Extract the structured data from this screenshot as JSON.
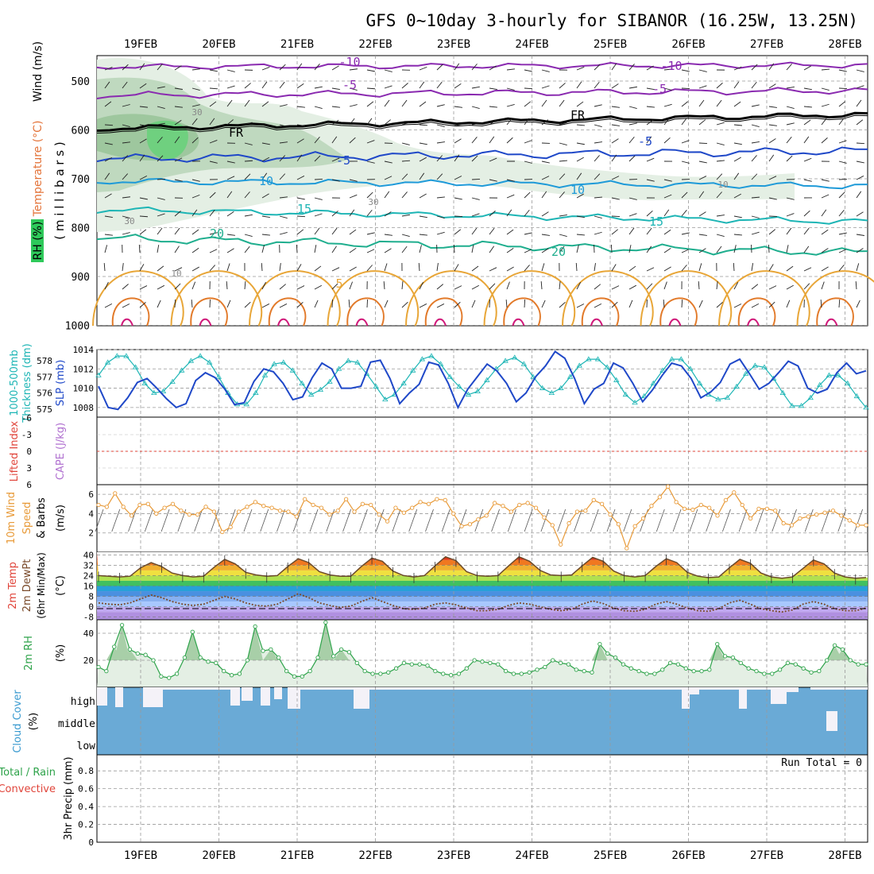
{
  "title": "GFS 0~10day 3-hourly for SIBANOR (16.25W, 13.25N)",
  "days": [
    "19FEB",
    "20FEB",
    "21FEB",
    "22FEB",
    "23FEB",
    "24FEB",
    "25FEB",
    "26FEB",
    "27FEB",
    "28FEB"
  ],
  "colors": {
    "wind_fill": "#2ec95a",
    "temp_lbl": "#e4743a",
    "thick": "#1db5b5",
    "slp": "#1f48c8",
    "lifted": "#e0443a",
    "cape": "#b070d0",
    "wind10": "#e89a38",
    "rh": "#2ea34a",
    "cloud": "#6aaad6",
    "cloud_lbl": "#3b9bd0",
    "precip_total": "#2ea34a",
    "precip_conv": "#e0443a"
  },
  "panels": {
    "upper": {
      "ylabel_parts": [
        "RH (%)",
        "Temperature (°C)",
        "Wind (m/s)"
      ],
      "ylabel_units": "( m i l l i b a r s )",
      "y_ticks": [
        "500",
        "600",
        "700",
        "800",
        "900",
        "1000"
      ],
      "contour_labels": [
        "-10",
        "-10",
        "-5",
        "-5",
        "FR",
        "FR",
        "-5",
        "-5",
        "10",
        "10",
        "15",
        "15",
        "20",
        "20",
        "5",
        "30",
        "30",
        "30",
        "10",
        "10"
      ]
    },
    "slp": {
      "ylabel_left": [
        "1000-500mb",
        "Thickness (dm)"
      ],
      "ylabel_right": "SLP (mb)",
      "thick_ticks": [
        "578",
        "577",
        "576",
        "575"
      ],
      "slp_ticks": [
        "1014",
        "1012",
        "1010",
        "1008"
      ]
    },
    "cape": {
      "ylabel_left": "Lifted Index",
      "ylabel_right": "CAPE (J/kg)",
      "ticks": [
        "-6",
        "-3",
        "0",
        "3",
        "6"
      ]
    },
    "wind10": {
      "ylabel": [
        "10m Wind",
        "Speed",
        "& Barbs"
      ],
      "units": "(m/s)",
      "ticks": [
        "6",
        "4",
        "2"
      ]
    },
    "temp": {
      "ylabel": [
        "2m Temp",
        "2m DewPt",
        "(6hr Min/Max)"
      ],
      "units": "(°C)",
      "ticks": [
        "40",
        "32",
        "24",
        "16",
        "8",
        "0",
        "-8"
      ]
    },
    "rh": {
      "ylabel": "2m RH",
      "units": "(%)",
      "ticks": [
        "40",
        "20"
      ]
    },
    "cloud": {
      "ylabel": "Cloud Cover",
      "units": "(%)",
      "levels": [
        "high",
        "middle",
        "low"
      ]
    },
    "precip": {
      "ylabel_left": [
        "Total / Rain",
        "Convective"
      ],
      "ylabel_right": "3hr Precip (mm)",
      "ticks": [
        "0.8",
        "0.6",
        "0.4",
        "0.2",
        "0"
      ],
      "run_total": "Run Total = 0"
    }
  },
  "chart_data": {
    "type": "line",
    "x_start": "2021-02-18T15:00Z",
    "x_step_hours": 3,
    "series": [
      {
        "name": "SLP (mb)",
        "values": [
          1010.2,
          1008.0,
          1007.8,
          1009.0,
          1010.6,
          1011.0,
          1010.0,
          1008.9,
          1008.0,
          1008.4,
          1010.8,
          1011.6,
          1011.1,
          1009.9,
          1008.3,
          1008.5,
          1010.7,
          1012.0,
          1011.7,
          1010.5,
          1008.8,
          1009.1,
          1011.1,
          1012.6,
          1012.0,
          1010.0,
          1010.0,
          1010.2,
          1012.7,
          1012.9,
          1011.0,
          1008.4,
          1009.5,
          1010.4,
          1012.7,
          1012.4,
          1010.5,
          1008.0,
          1009.9,
          1011.2,
          1012.5,
          1011.8,
          1010.5,
          1008.6,
          1009.5,
          1011.2,
          1012.3,
          1013.8,
          1013.1,
          1011.0,
          1008.4,
          1009.9,
          1010.5,
          1012.6,
          1012.1,
          1010.5,
          1008.6,
          1009.8,
          1011.3,
          1012.6,
          1012.3,
          1011.0,
          1009.0,
          1009.6,
          1010.6,
          1012.5,
          1013.0,
          1011.5,
          1009.9,
          1010.5,
          1011.6,
          1012.8,
          1012.3,
          1010.0,
          1009.5,
          1009.9,
          1011.6,
          1012.6,
          1011.5,
          1011.8
        ]
      },
      {
        "name": "1000-500mb Thickness (dm)",
        "values": [
          577.1,
          577.9,
          578.3,
          578.3,
          577.6,
          576.6,
          576.0,
          576.1,
          576.7,
          577.4,
          578.0,
          578.3,
          577.9,
          577.0,
          576.0,
          575.3,
          575.3,
          576.0,
          577.1,
          577.8,
          577.9,
          577.4,
          576.6,
          575.9,
          576.2,
          576.7,
          577.5,
          578.0,
          577.9,
          577.2,
          576.4,
          575.6,
          575.9,
          576.6,
          577.4,
          578.1,
          578.3,
          577.8,
          577.0,
          576.4,
          575.9,
          576.1,
          576.8,
          577.5,
          578.0,
          578.2,
          577.8,
          577.0,
          576.3,
          576.0,
          576.3,
          577.0,
          577.7,
          578.1,
          578.1,
          577.6,
          576.8,
          575.9,
          575.4,
          575.8,
          576.6,
          577.4,
          578.1,
          578.1,
          577.5,
          576.6,
          575.9,
          575.6,
          575.7,
          576.4,
          577.2,
          577.7,
          577.6,
          576.9,
          576.0,
          575.2,
          575.2,
          575.7,
          576.5,
          577.1,
          577.1,
          576.6,
          575.8,
          575.1
        ]
      },
      {
        "name": "10m Wind Speed (m/s)",
        "values": [
          4.9,
          4.7,
          6.1,
          4.7,
          3.8,
          4.9,
          5.0,
          4.0,
          4.6,
          5.0,
          4.3,
          3.9,
          3.9,
          4.7,
          4.2,
          2.1,
          2.6,
          4.2,
          4.7,
          5.2,
          4.8,
          4.6,
          4.3,
          4.2,
          3.7,
          5.5,
          4.9,
          4.6,
          3.9,
          4.3,
          5.5,
          4.2,
          5.0,
          4.9,
          3.9,
          3.2,
          4.6,
          4.1,
          4.6,
          5.2,
          5.0,
          5.5,
          5.4,
          4.0,
          2.7,
          2.9,
          3.4,
          3.8,
          5.1,
          4.8,
          4.2,
          4.9,
          5.1,
          4.6,
          3.6,
          2.8,
          0.8,
          3.0,
          4.2,
          4.3,
          5.4,
          5.0,
          3.9,
          2.9,
          0.4,
          2.7,
          3.5,
          4.8,
          5.7,
          6.8,
          5.2,
          4.5,
          4.4,
          4.9,
          4.6,
          3.8,
          5.4,
          6.2,
          4.9,
          3.5,
          4.5,
          4.5,
          4.3,
          3.0,
          2.8,
          3.5,
          3.7,
          3.9,
          4.1,
          4.3,
          3.8,
          3.3,
          2.8,
          2.8
        ]
      },
      {
        "name": "2m Temp (°C)",
        "values": [
          24.0,
          23.5,
          23.0,
          23.5,
          30.0,
          34.0,
          31.0,
          26.0,
          24.0,
          23.0,
          23.5,
          30.5,
          36.5,
          33.0,
          26.5,
          24.5,
          23.5,
          24.0,
          31.0,
          37.0,
          34.0,
          27.0,
          24.5,
          23.5,
          23.5,
          31.0,
          37.5,
          35.0,
          27.5,
          24.0,
          23.0,
          24.0,
          31.5,
          38.5,
          35.5,
          27.0,
          24.0,
          23.5,
          24.0,
          31.5,
          38.5,
          35.0,
          28.0,
          24.5,
          24.0,
          24.5,
          31.5,
          38.0,
          35.0,
          27.5,
          24.0,
          23.0,
          24.0,
          31.0,
          37.0,
          34.0,
          26.5,
          23.5,
          22.5,
          23.0,
          30.0,
          36.5,
          33.5,
          26.0,
          23.0,
          22.0,
          23.0,
          29.5,
          36.0,
          33.0,
          26.0,
          23.0,
          22.0,
          22.5
        ]
      },
      {
        "name": "2m DewPt (°C)",
        "values": [
          3.0,
          2.0,
          1.5,
          3.0,
          6.0,
          9.0,
          7.0,
          4.0,
          2.0,
          1.0,
          2.0,
          5.0,
          8.0,
          6.0,
          3.0,
          1.0,
          0.5,
          2.0,
          6.0,
          10.0,
          7.0,
          3.0,
          1.0,
          -0.5,
          0.5,
          4.0,
          7.0,
          4.0,
          1.0,
          -1.5,
          -2.0,
          -1.0,
          2.0,
          3.0,
          1.5,
          -1.0,
          -3.0,
          -3.0,
          -2.0,
          1.0,
          3.0,
          2.0,
          0.0,
          -2.0,
          -3.0,
          -2.0,
          2.0,
          4.5,
          2.5,
          -1.0,
          -3.0,
          -3.5,
          -2.0,
          2.0,
          4.0,
          2.0,
          -1.0,
          -3.0,
          -3.5,
          -1.5,
          3.0,
          5.0,
          2.0,
          -1.5,
          -3.0,
          -4.0,
          -2.5,
          2.0,
          4.0,
          2.0,
          -1.5,
          -3.0,
          -3.0,
          -1.0
        ]
      },
      {
        "name": "2m RH (%)",
        "values": [
          15,
          12,
          30,
          46,
          28,
          25,
          24,
          20,
          8,
          7,
          10,
          22,
          41,
          22,
          19,
          18,
          12,
          9,
          10,
          20,
          45,
          27,
          28,
          22,
          12,
          8,
          8,
          12,
          22,
          48,
          23,
          28,
          26,
          18,
          12,
          10,
          10,
          11,
          14,
          18,
          17,
          17,
          16,
          12,
          10,
          9,
          10,
          14,
          20,
          19,
          18,
          17,
          12,
          10,
          10,
          11,
          13,
          15,
          20,
          18,
          17,
          13,
          12,
          11,
          32,
          25,
          22,
          17,
          14,
          12,
          10,
          10,
          13,
          18,
          17,
          14,
          12,
          12,
          13,
          32,
          23,
          22,
          18,
          14,
          12,
          10,
          10,
          13,
          18,
          17,
          14,
          11,
          12,
          20,
          31,
          28,
          20,
          17,
          17
        ]
      },
      {
        "name": "3hr Precip (mm)",
        "values": [
          0,
          0,
          0,
          0,
          0,
          0,
          0,
          0,
          0,
          0,
          0,
          0,
          0,
          0,
          0,
          0,
          0,
          0,
          0,
          0,
          0,
          0,
          0,
          0,
          0,
          0,
          0,
          0,
          0,
          0
        ]
      }
    ],
    "ylim_slp": [
      1007,
      1014
    ],
    "ylim_thick": [
      574.5,
      578.7
    ],
    "ylim_wind10": [
      0,
      7
    ],
    "ylim_temp": [
      -10,
      42
    ],
    "ylim_rh": [
      0,
      50
    ],
    "ylim_precip": [
      0,
      0.98
    ],
    "grid": true
  }
}
